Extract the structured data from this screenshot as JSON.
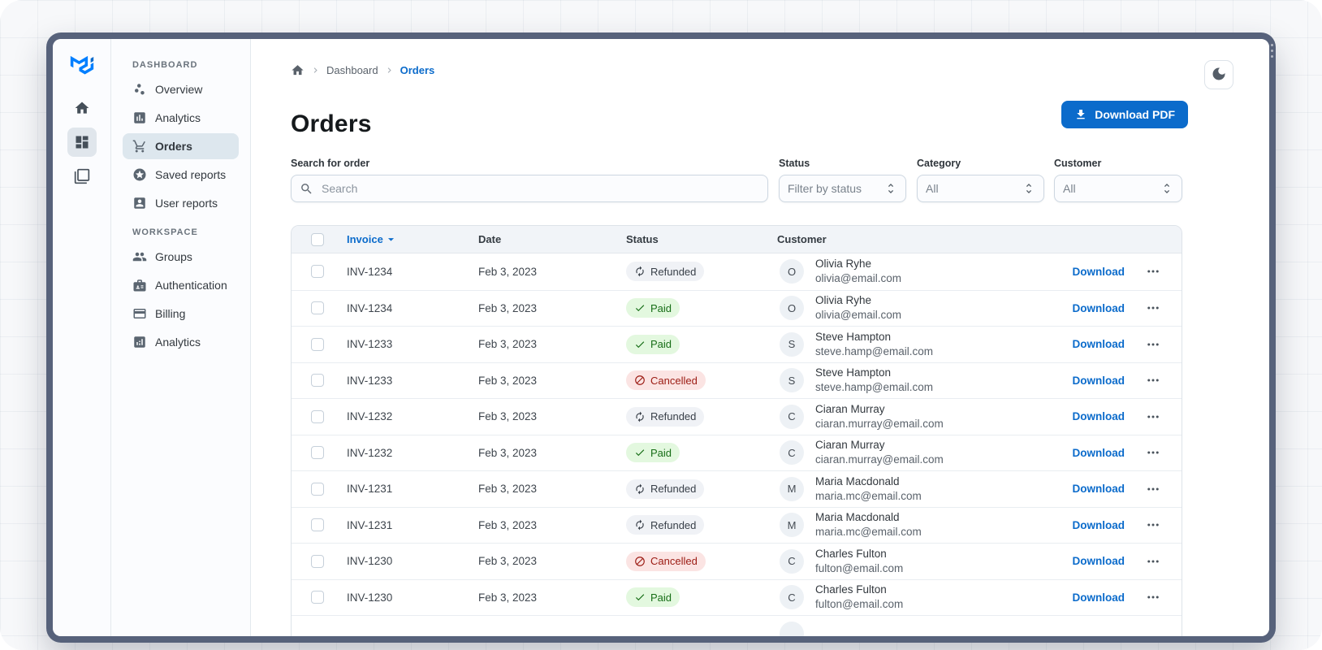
{
  "colors": {
    "primary": "#0B6BCB",
    "link": "#0B6BCB",
    "success_chip_bg": "#E3F8DF",
    "success_chip_text": "#176E17",
    "danger_chip_bg": "#FBE4E3",
    "danger_chip_text": "#9B1A12",
    "neutral_chip_bg": "#F0F2F6",
    "neutral_chip_text": "#394049",
    "selected_nav_bg": "#DDE7EE",
    "table_header_bg": "#F1F4F8",
    "window_frame": "#57627B"
  },
  "sidebar": {
    "rail": [
      {
        "icon": "home-icon",
        "selected": false
      },
      {
        "icon": "dashboard-icon",
        "selected": true
      },
      {
        "icon": "layers-icon",
        "selected": false
      }
    ],
    "sections": [
      {
        "label": "DASHBOARD",
        "items": [
          {
            "icon": "scatter-icon",
            "label": "Overview",
            "selected": false
          },
          {
            "icon": "assessment-icon",
            "label": "Analytics",
            "selected": false
          },
          {
            "icon": "cart-icon",
            "label": "Orders",
            "selected": true
          },
          {
            "icon": "stars-icon",
            "label": "Saved reports",
            "selected": false
          },
          {
            "icon": "account-box-icon",
            "label": "User reports",
            "selected": false
          }
        ]
      },
      {
        "label": "WORKSPACE",
        "items": [
          {
            "icon": "group-icon",
            "label": "Groups",
            "selected": false
          },
          {
            "icon": "badge-icon",
            "label": "Authentication",
            "selected": false
          },
          {
            "icon": "credit-card-icon",
            "label": "Billing",
            "selected": false
          },
          {
            "icon": "analytics-icon",
            "label": "Analytics",
            "selected": false
          }
        ]
      }
    ]
  },
  "header": {
    "breadcrumb": [
      "Dashboard",
      "Orders"
    ],
    "title": "Orders",
    "download_button": "Download PDF",
    "theme_toggle_icon": "moon-icon"
  },
  "filters": {
    "search": {
      "label": "Search for order",
      "placeholder": "Search"
    },
    "status": {
      "label": "Status",
      "value": "Filter by status"
    },
    "category": {
      "label": "Category",
      "value": "All"
    },
    "customer": {
      "label": "Customer",
      "value": "All"
    }
  },
  "table": {
    "columns": {
      "invoice": "Invoice",
      "date": "Date",
      "status": "Status",
      "customer": "Customer"
    },
    "download_label": "Download",
    "rows": [
      {
        "invoice": "INV-1234",
        "date": "Feb 3, 2023",
        "status": "Refunded",
        "status_variant": "neutral",
        "status_icon": "refresh-icon",
        "initial": "O",
        "name": "Olivia Ryhe",
        "email": "olivia@email.com"
      },
      {
        "invoice": "INV-1234",
        "date": "Feb 3, 2023",
        "status": "Paid",
        "status_variant": "success",
        "status_icon": "check-icon",
        "initial": "O",
        "name": "Olivia Ryhe",
        "email": "olivia@email.com"
      },
      {
        "invoice": "INV-1233",
        "date": "Feb 3, 2023",
        "status": "Paid",
        "status_variant": "success",
        "status_icon": "check-icon",
        "initial": "S",
        "name": "Steve Hampton",
        "email": "steve.hamp@email.com"
      },
      {
        "invoice": "INV-1233",
        "date": "Feb 3, 2023",
        "status": "Cancelled",
        "status_variant": "danger",
        "status_icon": "block-icon",
        "initial": "S",
        "name": "Steve Hampton",
        "email": "steve.hamp@email.com"
      },
      {
        "invoice": "INV-1232",
        "date": "Feb 3, 2023",
        "status": "Refunded",
        "status_variant": "neutral",
        "status_icon": "refresh-icon",
        "initial": "C",
        "name": "Ciaran Murray",
        "email": "ciaran.murray@email.com"
      },
      {
        "invoice": "INV-1232",
        "date": "Feb 3, 2023",
        "status": "Paid",
        "status_variant": "success",
        "status_icon": "check-icon",
        "initial": "C",
        "name": "Ciaran Murray",
        "email": "ciaran.murray@email.com"
      },
      {
        "invoice": "INV-1231",
        "date": "Feb 3, 2023",
        "status": "Refunded",
        "status_variant": "neutral",
        "status_icon": "refresh-icon",
        "initial": "M",
        "name": "Maria Macdonald",
        "email": "maria.mc@email.com"
      },
      {
        "invoice": "INV-1231",
        "date": "Feb 3, 2023",
        "status": "Refunded",
        "status_variant": "neutral",
        "status_icon": "refresh-icon",
        "initial": "M",
        "name": "Maria Macdonald",
        "email": "maria.mc@email.com"
      },
      {
        "invoice": "INV-1230",
        "date": "Feb 3, 2023",
        "status": "Cancelled",
        "status_variant": "danger",
        "status_icon": "block-icon",
        "initial": "C",
        "name": "Charles Fulton",
        "email": "fulton@email.com"
      },
      {
        "invoice": "INV-1230",
        "date": "Feb 3, 2023",
        "status": "Paid",
        "status_variant": "success",
        "status_icon": "check-icon",
        "initial": "C",
        "name": "Charles Fulton",
        "email": "fulton@email.com"
      },
      {
        "invoice": "",
        "date": "",
        "status": "",
        "status_variant": "none",
        "status_icon": "",
        "initial": "",
        "name": "",
        "email": "",
        "partial": true
      }
    ]
  }
}
